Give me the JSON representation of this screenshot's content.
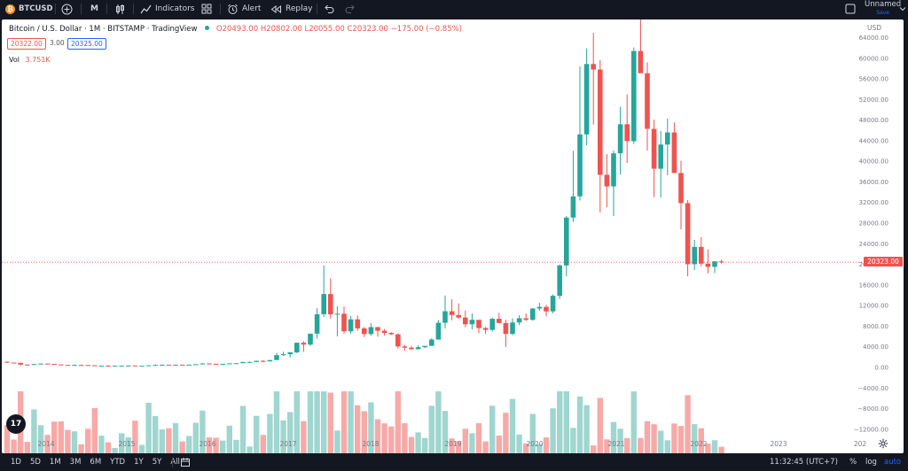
{
  "toolbar": {
    "symbol": "BTCUSD",
    "interval": "M",
    "indicators_label": "Indicators",
    "alert_label": "Alert",
    "replay_label": "Replay",
    "layout_name": "Unnamed",
    "layout_status": "Save"
  },
  "legend": {
    "title": "Bitcoin / U.S. Dollar · 1M · BITSTAMP · TradingView",
    "ohlc": "O20493.00 H20802.00 L20055.00 C20323.00 −175.00 (−0.85%)",
    "bid": "20322.00",
    "spread": "3.00",
    "ask": "20325.00",
    "volume_label": "Vol",
    "volume_value": "3.751K"
  },
  "price_axis": {
    "currency": "USD",
    "last_price_label": "20323.00",
    "ticks": [
      "64000.00",
      "60000.00",
      "56000.00",
      "52000.00",
      "48000.00",
      "44000.00",
      "40000.00",
      "36000.00",
      "32000.00",
      "28000.00",
      "24000.00",
      "20000.00",
      "16000.00",
      "12000.00",
      "8000.00",
      "4000.00",
      "0.00",
      "−4000.00",
      "−8000.00",
      "−12000.00"
    ]
  },
  "time_axis": {
    "labels": [
      "2014",
      "2015",
      "2016",
      "2017",
      "2018",
      "2019",
      "2020",
      "2021",
      "2022",
      "2023",
      "202"
    ]
  },
  "bottombar": {
    "ranges": [
      "1D",
      "5D",
      "1M",
      "3M",
      "6M",
      "YTD",
      "1Y",
      "5Y",
      "All"
    ],
    "clock": "11:32:45 (UTC+7)",
    "percent_label": "%",
    "log_label": "log",
    "auto_label": "auto"
  },
  "colors": {
    "up": "#26a69a",
    "down": "#ef5350",
    "up_volume": "#9fd6cf",
    "down_volume": "#f7a9a7",
    "background": "#ffffff",
    "chrome": "#131722"
  },
  "chart_data": {
    "type": "candlestick",
    "title": "Bitcoin / U.S. Dollar · 1M · BITSTAMP · TradingView",
    "ylim": [
      -12000,
      66000
    ],
    "grid": false,
    "x_labels": [
      "2014",
      "2015",
      "2016",
      "2017",
      "2018",
      "2019",
      "2020",
      "2021",
      "2022",
      "2023"
    ],
    "last_price": 20323,
    "monthly_candles": [
      [
        1014,
        1100,
        780,
        850
      ],
      [
        850,
        865,
        780,
        800
      ],
      [
        800,
        820,
        330,
        460
      ],
      [
        460,
        520,
        340,
        440
      ],
      [
        440,
        600,
        420,
        560
      ],
      [
        560,
        680,
        520,
        650
      ],
      [
        650,
        660,
        570,
        590
      ],
      [
        590,
        600,
        460,
        480
      ],
      [
        480,
        500,
        380,
        390
      ],
      [
        390,
        420,
        300,
        340
      ],
      [
        340,
        480,
        330,
        380
      ],
      [
        380,
        470,
        340,
        370
      ],
      [
        370,
        380,
        270,
        320
      ],
      [
        320,
        340,
        190,
        230
      ],
      [
        230,
        280,
        240,
        250
      ],
      [
        250,
        320,
        210,
        240
      ],
      [
        240,
        260,
        220,
        240
      ],
      [
        240,
        260,
        220,
        265
      ],
      [
        265,
        320,
        260,
        285
      ],
      [
        285,
        290,
        210,
        230
      ],
      [
        230,
        250,
        225,
        235
      ],
      [
        235,
        330,
        230,
        310
      ],
      [
        310,
        500,
        300,
        380
      ],
      [
        380,
        470,
        350,
        430
      ],
      [
        430,
        440,
        350,
        370
      ],
      [
        370,
        440,
        360,
        435
      ],
      [
        435,
        430,
        410,
        415
      ],
      [
        415,
        460,
        400,
        450
      ],
      [
        450,
        540,
        440,
        530
      ],
      [
        530,
        780,
        520,
        670
      ],
      [
        670,
        680,
        450,
        620
      ],
      [
        620,
        630,
        520,
        575
      ],
      [
        575,
        610,
        590,
        605
      ],
      [
        605,
        720,
        600,
        700
      ],
      [
        700,
        750,
        680,
        740
      ],
      [
        740,
        980,
        750,
        960
      ],
      [
        960,
        1030,
        760,
        970
      ],
      [
        970,
        1200,
        920,
        1190
      ],
      [
        1190,
        1300,
        890,
        1080
      ],
      [
        1080,
        1350,
        1070,
        1340
      ],
      [
        1340,
        2750,
        1340,
        2290
      ],
      [
        2290,
        2960,
        2130,
        2480
      ],
      [
        2480,
        2870,
        1840,
        2830
      ],
      [
        2830,
        4750,
        2700,
        4700
      ],
      [
        4700,
        4980,
        2950,
        4340
      ],
      [
        4340,
        6470,
        4100,
        6460
      ],
      [
        6460,
        11400,
        5500,
        10230
      ],
      [
        10230,
        19700,
        9700,
        14150
      ],
      [
        14150,
        17200,
        9400,
        10220
      ],
      [
        10220,
        11780,
        5940,
        10330
      ],
      [
        10330,
        11710,
        6470,
        6920
      ],
      [
        6920,
        9890,
        6430,
        9240
      ],
      [
        9240,
        9990,
        7030,
        7490
      ],
      [
        7490,
        7770,
        5780,
        6390
      ],
      [
        6390,
        8480,
        6080,
        7730
      ],
      [
        7730,
        7800,
        5880,
        7030
      ],
      [
        7030,
        7360,
        6100,
        6600
      ],
      [
        6600,
        6760,
        6180,
        6340
      ],
      [
        6340,
        6560,
        3550,
        3990
      ],
      [
        3990,
        4300,
        3150,
        3740
      ],
      [
        3740,
        4080,
        3350,
        3450
      ],
      [
        3450,
        4210,
        3390,
        3830
      ],
      [
        3830,
        4100,
        3680,
        4100
      ],
      [
        4100,
        5590,
        4070,
        5320
      ],
      [
        5320,
        9080,
        5290,
        8570
      ],
      [
        8570,
        13880,
        7500,
        10810
      ],
      [
        10810,
        13120,
        9050,
        10080
      ],
      [
        10080,
        12340,
        9370,
        9590
      ],
      [
        9590,
        10950,
        7710,
        8290
      ],
      [
        8290,
        10370,
        7300,
        9150
      ],
      [
        9150,
        9090,
        6530,
        7550
      ],
      [
        7550,
        7750,
        6430,
        7200
      ],
      [
        7200,
        9560,
        6850,
        9350
      ],
      [
        9350,
        10500,
        8450,
        8530
      ],
      [
        8530,
        9180,
        3860,
        6410
      ],
      [
        6410,
        9450,
        6150,
        8630
      ],
      [
        8630,
        10060,
        8110,
        9450
      ],
      [
        9450,
        10400,
        8900,
        9140
      ],
      [
        9140,
        11450,
        8980,
        11340
      ],
      [
        11340,
        12470,
        10930,
        11650
      ],
      [
        11650,
        12050,
        9840,
        10780
      ],
      [
        10780,
        14080,
        10380,
        13800
      ],
      [
        13800,
        19880,
        13200,
        19700
      ],
      [
        19700,
        29300,
        17600,
        28990
      ],
      [
        28990,
        41950,
        28130,
        33110
      ],
      [
        33110,
        58330,
        32300,
        45140
      ],
      [
        45140,
        61780,
        43000,
        58790
      ],
      [
        58790,
        64850,
        47050,
        57720
      ],
      [
        57720,
        59550,
        30000,
        37300
      ],
      [
        37300,
        41350,
        31000,
        35040
      ],
      [
        35040,
        42000,
        29300,
        41460
      ],
      [
        41460,
        50500,
        37330,
        47100
      ],
      [
        47100,
        52920,
        39600,
        43820
      ],
      [
        43820,
        62000,
        43290,
        61320
      ],
      [
        61320,
        69000,
        57350,
        57000
      ],
      [
        57000,
        59100,
        42000,
        46210
      ],
      [
        46210,
        47990,
        32950,
        38470
      ],
      [
        38470,
        45800,
        32900,
        43160
      ],
      [
        43160,
        48200,
        37200,
        45510
      ],
      [
        45510,
        47450,
        37700,
        37640
      ],
      [
        37640,
        40000,
        26700,
        31790
      ],
      [
        31790,
        32400,
        17600,
        19940
      ],
      [
        19940,
        24670,
        18780,
        23300
      ],
      [
        23300,
        25200,
        19520,
        20050
      ],
      [
        20050,
        22800,
        18150,
        19430
      ],
      [
        19430,
        20500,
        18200,
        20490
      ],
      [
        20490,
        20802,
        20055,
        20323
      ]
    ],
    "monthly_volume_shown_as_bar_heights": "relative only, no volume axis values printed"
  }
}
